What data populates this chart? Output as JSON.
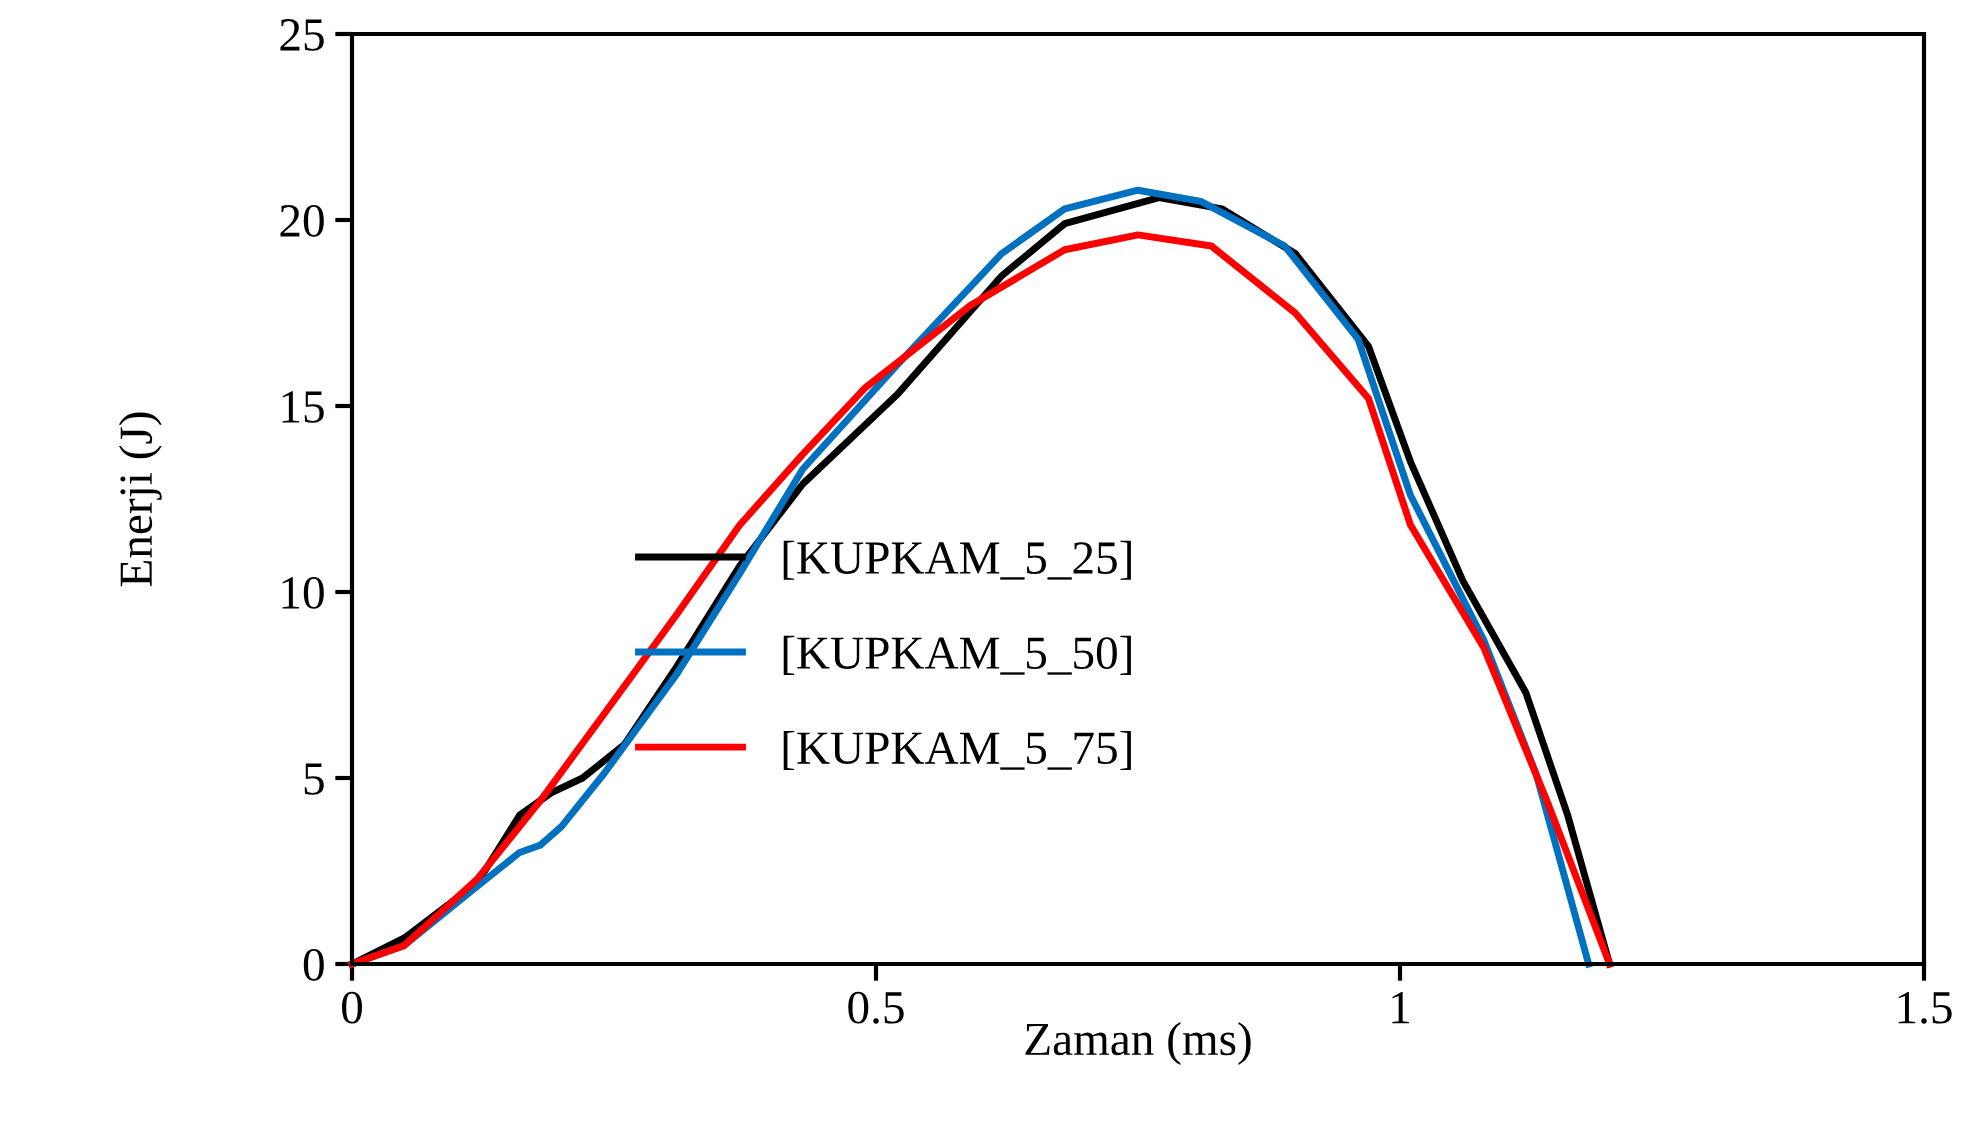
{
  "chart_data": {
    "type": "line",
    "xlabel": "Zaman (ms)",
    "ylabel": "Enerji (J)",
    "xlim": [
      0,
      1.5
    ],
    "xticks": [
      0,
      0.5,
      1,
      1.5
    ],
    "ylim": [
      0,
      25
    ],
    "yticks": [
      0,
      5,
      10,
      15,
      20,
      25
    ],
    "grid": false,
    "legend": "center",
    "marker": "none",
    "line_style": "solid",
    "series": [
      {
        "name": "[KUPKAM_5_25]",
        "color": "#000000",
        "x": [
          0,
          0.05,
          0.12,
          0.16,
          0.19,
          0.22,
          0.26,
          0.31,
          0.37,
          0.43,
          0.52,
          0.62,
          0.68,
          0.77,
          0.83,
          0.9,
          0.97,
          1.01,
          1.06,
          1.12,
          1.16,
          1.2
        ],
        "values": [
          0,
          0.7,
          2.2,
          4.0,
          4.6,
          5.0,
          5.9,
          8.0,
          10.7,
          12.9,
          15.3,
          18.5,
          19.9,
          20.6,
          20.3,
          19.1,
          16.6,
          13.5,
          10.3,
          7.3,
          4.0,
          0
        ]
      },
      {
        "name": "[KUPKAM_5_50]",
        "color": "#0070c0",
        "x": [
          0,
          0.05,
          0.12,
          0.16,
          0.18,
          0.2,
          0.24,
          0.31,
          0.37,
          0.43,
          0.52,
          0.62,
          0.68,
          0.75,
          0.81,
          0.89,
          0.96,
          1.01,
          1.08,
          1.13,
          1.18
        ],
        "values": [
          0,
          0.5,
          2.1,
          3.0,
          3.2,
          3.7,
          5.1,
          7.8,
          10.5,
          13.3,
          16.1,
          19.1,
          20.3,
          20.8,
          20.5,
          19.3,
          16.8,
          12.6,
          8.7,
          5.1,
          0
        ]
      },
      {
        "name": "[KUPKAM_5_75]",
        "color": "#ff0000",
        "x": [
          0,
          0.05,
          0.12,
          0.18,
          0.24,
          0.31,
          0.37,
          0.43,
          0.49,
          0.59,
          0.68,
          0.75,
          0.82,
          0.9,
          0.97,
          1.01,
          1.08,
          1.14,
          1.2
        ],
        "values": [
          0,
          0.5,
          2.3,
          4.4,
          6.7,
          9.4,
          11.8,
          13.7,
          15.5,
          17.7,
          19.2,
          19.6,
          19.3,
          17.5,
          15.2,
          11.8,
          8.5,
          4.4,
          0
        ]
      }
    ]
  }
}
